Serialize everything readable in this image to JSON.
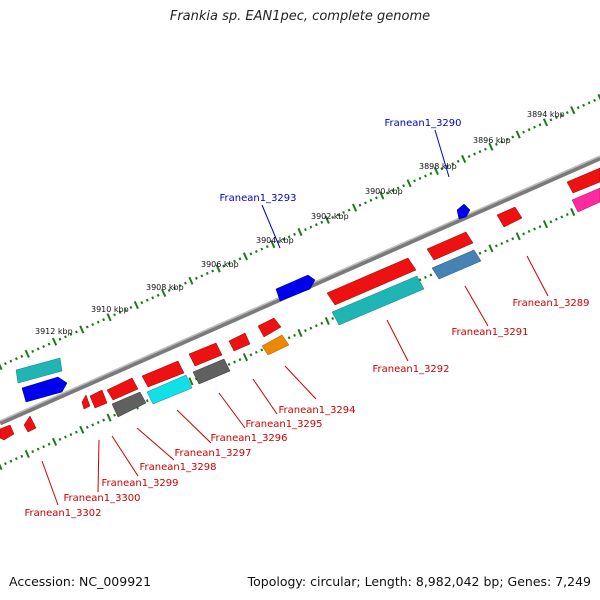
{
  "title": "Frankia sp. EAN1pec, complete genome",
  "footer": {
    "accession": "Accession: NC_009921",
    "summary": "Topology: circular; Length: 8,982,042 bp; Genes: 7,249"
  },
  "colors": {
    "forward_label": "#0000cc",
    "reverse_label": "#cc0000",
    "backbone": "#888888",
    "ticks": "#1a7a1a"
  },
  "scale_labels": [
    "3912 kbp",
    "3910 kbp",
    "3908 kbp",
    "3906 kbp",
    "3904 kbp",
    "3902 kbp",
    "3900 kbp",
    "3898 kbp",
    "3896 kbp",
    "3894 kbp"
  ],
  "gene_labels": {
    "forward": [
      "Franean1_3293",
      "Franean1_3290"
    ],
    "reverse": [
      "Franean1_3302",
      "Franean1_3300",
      "Franean1_3299",
      "Franean1_3298",
      "Franean1_3297",
      "Franean1_3296",
      "Franean1_3295",
      "Franean1_3294",
      "Franean1_3292",
      "Franean1_3291",
      "Franean1_3289"
    ]
  }
}
